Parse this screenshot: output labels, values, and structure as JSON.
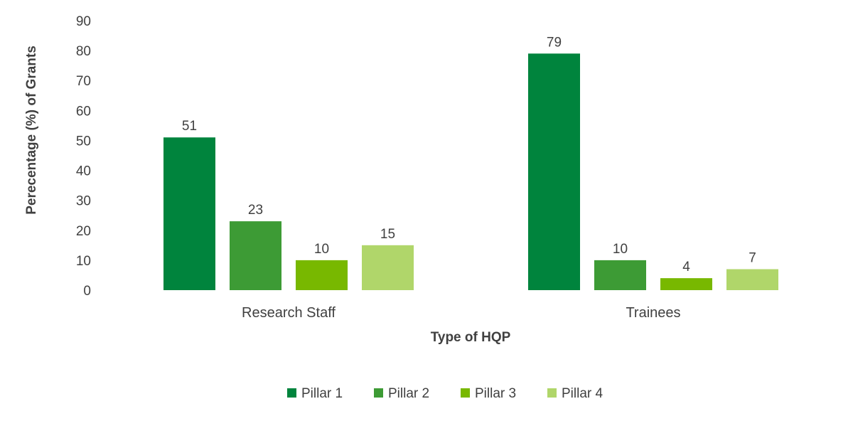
{
  "chart_data": {
    "type": "bar",
    "title": "",
    "xlabel": "Type of HQP",
    "ylabel": "Perecentage (%) of Grants",
    "ylim": [
      0,
      90
    ],
    "ytick_step": 10,
    "yticks": [
      "0",
      "10",
      "20",
      "30",
      "40",
      "50",
      "60",
      "70",
      "80",
      "90"
    ],
    "categories": [
      "Research Staff",
      "Trainees"
    ],
    "series": [
      {
        "name": "Pillar 1",
        "values": [
          51,
          79
        ],
        "color": "#00843D"
      },
      {
        "name": "Pillar 2",
        "values": [
          23,
          10
        ],
        "color": "#3D9B35"
      },
      {
        "name": "Pillar 3",
        "values": [
          10,
          4
        ],
        "color": "#78B800"
      },
      {
        "name": "Pillar 4",
        "values": [
          15,
          7
        ],
        "color": "#B0D66A"
      }
    ],
    "grid": false,
    "legend_position": "bottom"
  }
}
